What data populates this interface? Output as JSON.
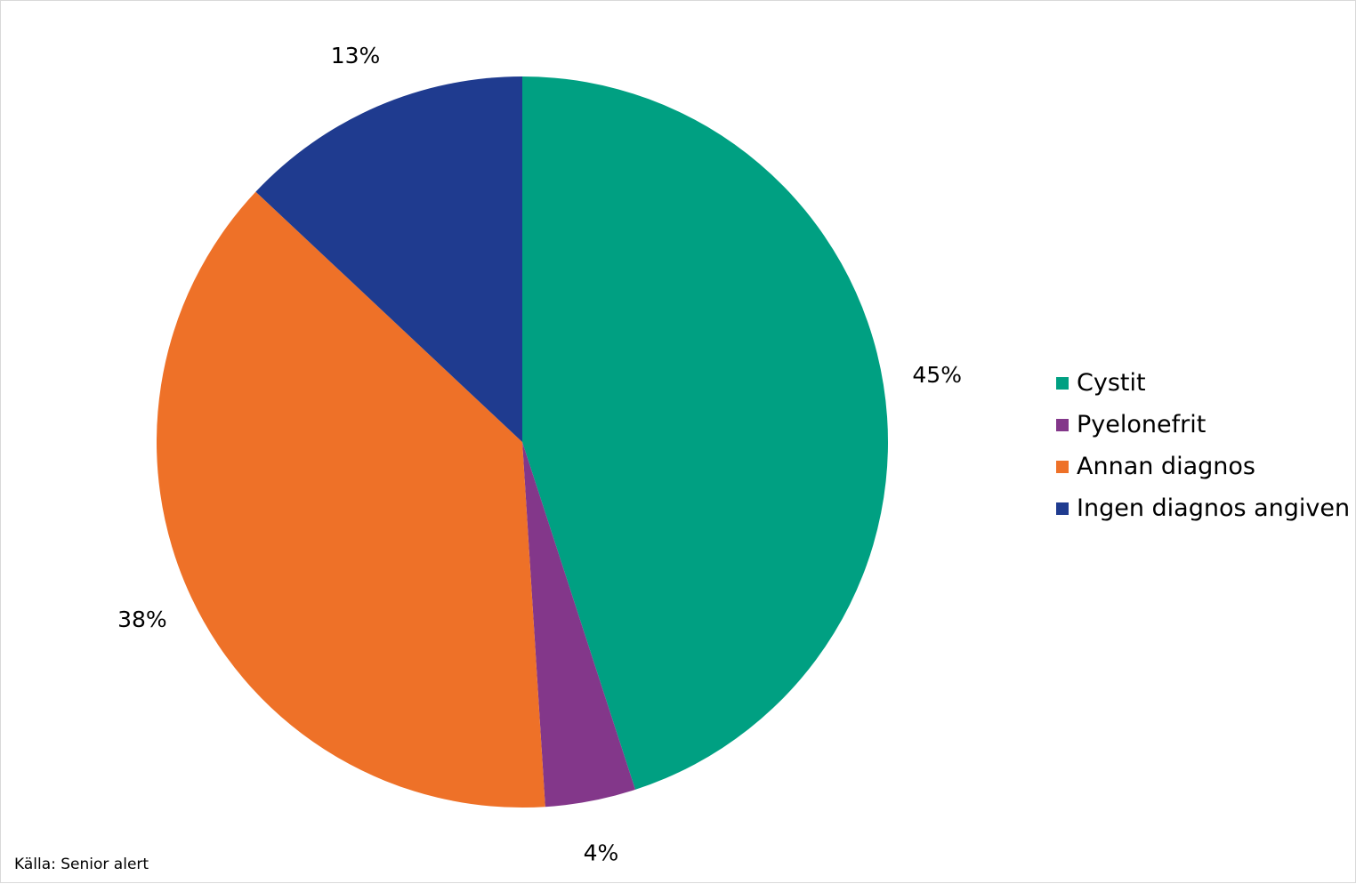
{
  "chart_data": {
    "type": "pie",
    "start_angle_deg": 0,
    "direction": "clockwise",
    "slices": [
      {
        "label": "Cystit",
        "value": 45,
        "display": "45%",
        "color": "#00a082"
      },
      {
        "label": "Pyelonefrit",
        "value": 4,
        "display": "4%",
        "color": "#83378a"
      },
      {
        "label": "Annan diagnos",
        "value": 38,
        "display": "38%",
        "color": "#ee7128"
      },
      {
        "label": "Ingen diagnos angiven",
        "value": 13,
        "display": "13%",
        "color": "#1f3b8f"
      }
    ],
    "legend_position": "right"
  },
  "footer": {
    "source": "Källa: Senior alert"
  }
}
